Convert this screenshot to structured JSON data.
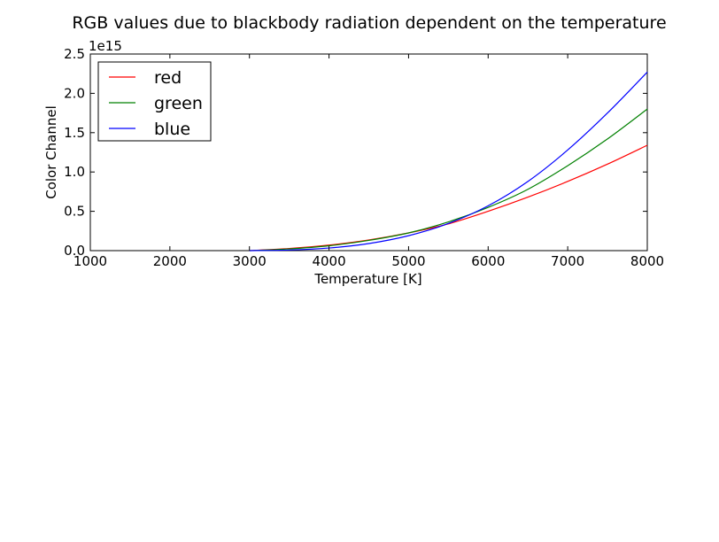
{
  "chart_data": {
    "type": "line",
    "title": "RGB values due to blackbody radiation dependent on the temperature",
    "xlabel": "Temperature [K]",
    "ylabel": "Color Channel",
    "y_multiplier_label": "1e15",
    "xlim": [
      1000,
      8000
    ],
    "ylim": [
      0,
      2.5
    ],
    "x_ticks": [
      "1000",
      "2000",
      "3000",
      "4000",
      "5000",
      "6000",
      "7000",
      "8000"
    ],
    "y_ticks": [
      "0.0",
      "0.5",
      "1.0",
      "1.5",
      "2.0",
      "2.5"
    ],
    "grid": false,
    "legend_position": "top-left",
    "x": [
      3000,
      3500,
      4000,
      4500,
      5000,
      5500,
      6000,
      6500,
      7000,
      7500,
      8000
    ],
    "series": [
      {
        "name": "red",
        "color": "#ff0000",
        "values": [
          0.0,
          0.027,
          0.07,
          0.135,
          0.225,
          0.34,
          0.5,
          0.68,
          0.88,
          1.1,
          1.34
        ]
      },
      {
        "name": "green",
        "color": "#008000",
        "values": [
          0.0,
          0.022,
          0.062,
          0.13,
          0.225,
          0.365,
          0.55,
          0.78,
          1.08,
          1.42,
          1.8
        ]
      },
      {
        "name": "blue",
        "color": "#0000ff",
        "values": [
          0.0,
          0.008,
          0.033,
          0.09,
          0.19,
          0.345,
          0.57,
          0.88,
          1.28,
          1.75,
          2.27
        ]
      }
    ]
  }
}
